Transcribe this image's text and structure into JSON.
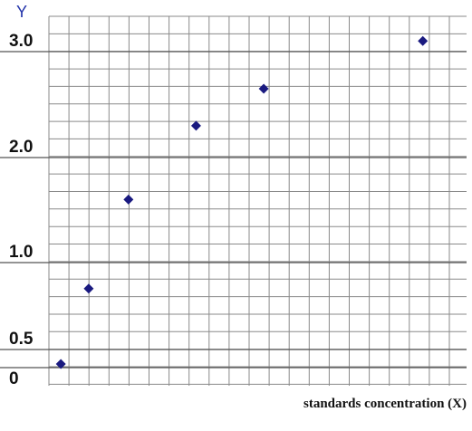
{
  "chart_data": {
    "type": "scatter",
    "title": "",
    "xlabel": "standards concentration (X)",
    "ylabel": "Y",
    "y_ticks": [
      {
        "value": 0,
        "label": "0"
      },
      {
        "value": 0.5,
        "label": "0.5"
      },
      {
        "value": 1.0,
        "label": "1.0"
      },
      {
        "value": 2.0,
        "label": "2.0"
      },
      {
        "value": 3.0,
        "label": "3.0"
      }
    ],
    "ylim": [
      0,
      3.5
    ],
    "xlim": [
      0,
      10.5
    ],
    "grid": true,
    "marker": "diamond",
    "marker_color": "#1a1a80",
    "points": [
      {
        "x": 0.3,
        "y": 0.1
      },
      {
        "x": 1.0,
        "y": 0.85
      },
      {
        "x": 2.0,
        "y": 1.6
      },
      {
        "x": 3.7,
        "y": 2.3
      },
      {
        "x": 5.4,
        "y": 2.65
      },
      {
        "x": 9.4,
        "y": 3.1
      }
    ]
  }
}
